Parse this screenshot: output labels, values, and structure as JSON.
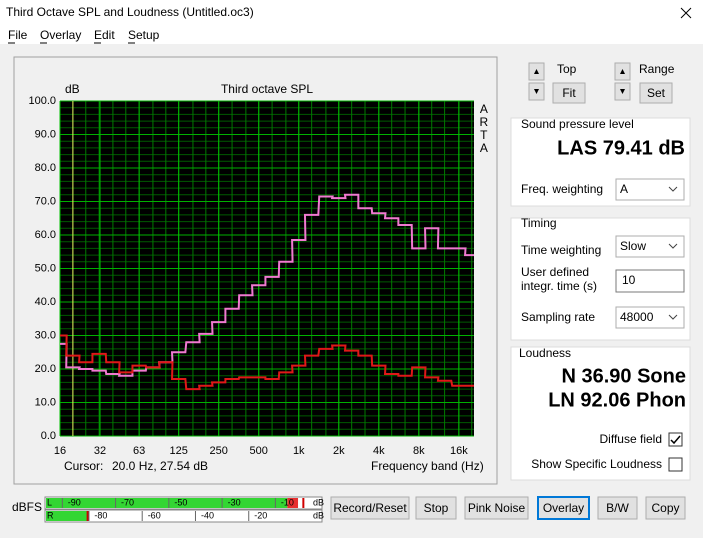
{
  "window": {
    "title": "Third Octave SPL and Loudness (Untitled.oc3)"
  },
  "menu": [
    "File",
    "Overlay",
    "Edit",
    "Setup"
  ],
  "chart_data": {
    "type": "step",
    "title": "Third octave SPL",
    "y_label": "dB",
    "x_label": "Frequency band (Hz)",
    "side_label": "ARTA",
    "cursor": {
      "label": "Cursor:",
      "x": 20,
      "text": "20.0 Hz, 27.54 dB"
    },
    "log_x": true,
    "grid": true,
    "x": [
      16,
      20,
      25,
      31.5,
      40,
      50,
      63,
      80,
      100,
      125,
      160,
      200,
      250,
      315,
      400,
      500,
      630,
      800,
      1000,
      1250,
      1600,
      2000,
      2500,
      3150,
      4000,
      5000,
      6300,
      8000,
      10000,
      12500,
      16000,
      20000
    ],
    "series": [
      {
        "color": "#f07ad0",
        "values": [
          27.5,
          20.5,
          20,
          19.5,
          18.5,
          18,
          19.5,
          20.5,
          22,
          25,
          28,
          30.5,
          34,
          38,
          42,
          45,
          47.5,
          52,
          58.5,
          66,
          71.5,
          71,
          72,
          68,
          66.5,
          65,
          63,
          56,
          62,
          56,
          56,
          54
        ]
      },
      {
        "color": "#e01818",
        "values": [
          30,
          24,
          22,
          24.5,
          22,
          19,
          21,
          20.5,
          22,
          17,
          14,
          15,
          16,
          17,
          17.5,
          17.5,
          17,
          19,
          21,
          24,
          26,
          27,
          25.5,
          24,
          21,
          18.5,
          18,
          20.5,
          17.5,
          16.5,
          15,
          15
        ]
      }
    ],
    "xlim": [
      16,
      20800
    ],
    "xticks": [
      16,
      32,
      63,
      125,
      250,
      500,
      {
        "value": 1000,
        "label": "1k"
      },
      {
        "value": 2000,
        "label": "2k"
      },
      {
        "value": 4000,
        "label": "4k"
      },
      {
        "value": 8000,
        "label": "8k"
      },
      {
        "value": 16000,
        "label": "16k"
      }
    ],
    "ylim": [
      0,
      100
    ],
    "yticks": [
      {
        "value": 0,
        "label": "0.0"
      },
      {
        "value": 10,
        "label": "10.0"
      },
      {
        "value": 20,
        "label": "20.0"
      },
      {
        "value": 30,
        "label": "30.0"
      },
      {
        "value": 40,
        "label": "40.0"
      },
      {
        "value": 50,
        "label": "50.0"
      },
      {
        "value": 60,
        "label": "60.0"
      },
      {
        "value": 70,
        "label": "70.0"
      },
      {
        "value": 80,
        "label": "80.0"
      },
      {
        "value": 90,
        "label": "90.0"
      },
      {
        "value": 100,
        "label": "100.0"
      }
    ]
  },
  "controls": {
    "top_label": "Top",
    "fit": "Fit",
    "range_label": "Range",
    "set": "Set"
  },
  "spl": {
    "title": "Sound pressure level",
    "reading": "LAS 79.41 dB",
    "freq_weighting_label": "Freq. weighting",
    "freq_weighting": "A"
  },
  "timing": {
    "title": "Timing",
    "time_weighting_label": "Time weighting",
    "time_weighting": "Slow",
    "integr_label_1": "User defined",
    "integr_label_2": "integr. time (s)",
    "integr_time": "10",
    "sampling_label": "Sampling rate",
    "sampling_rate": "48000"
  },
  "loudness": {
    "title": "Loudness",
    "n": "N 36.90 Sone",
    "ln": "LN 92.06 Phon",
    "diffuse": "Diffuse field",
    "diffuse_checked": true,
    "show_specific": "Show Specific Loudness",
    "show_specific_checked": false
  },
  "meter": {
    "label": "dBFS",
    "channels": [
      "L",
      "R"
    ],
    "units": [
      "dB",
      "dB"
    ],
    "xlim": [
      -101,
      3
    ],
    "ticks_l": [
      -90,
      -70,
      -50,
      -30,
      -10
    ],
    "ticks_r": [
      -80,
      -60,
      -40,
      -20
    ],
    "levels": [
      -6,
      -85
    ],
    "peaks": [
      -4,
      -85
    ]
  },
  "buttons": [
    "Record/Reset",
    "Stop",
    "Pink Noise",
    "Overlay",
    "B/W",
    "Copy"
  ]
}
